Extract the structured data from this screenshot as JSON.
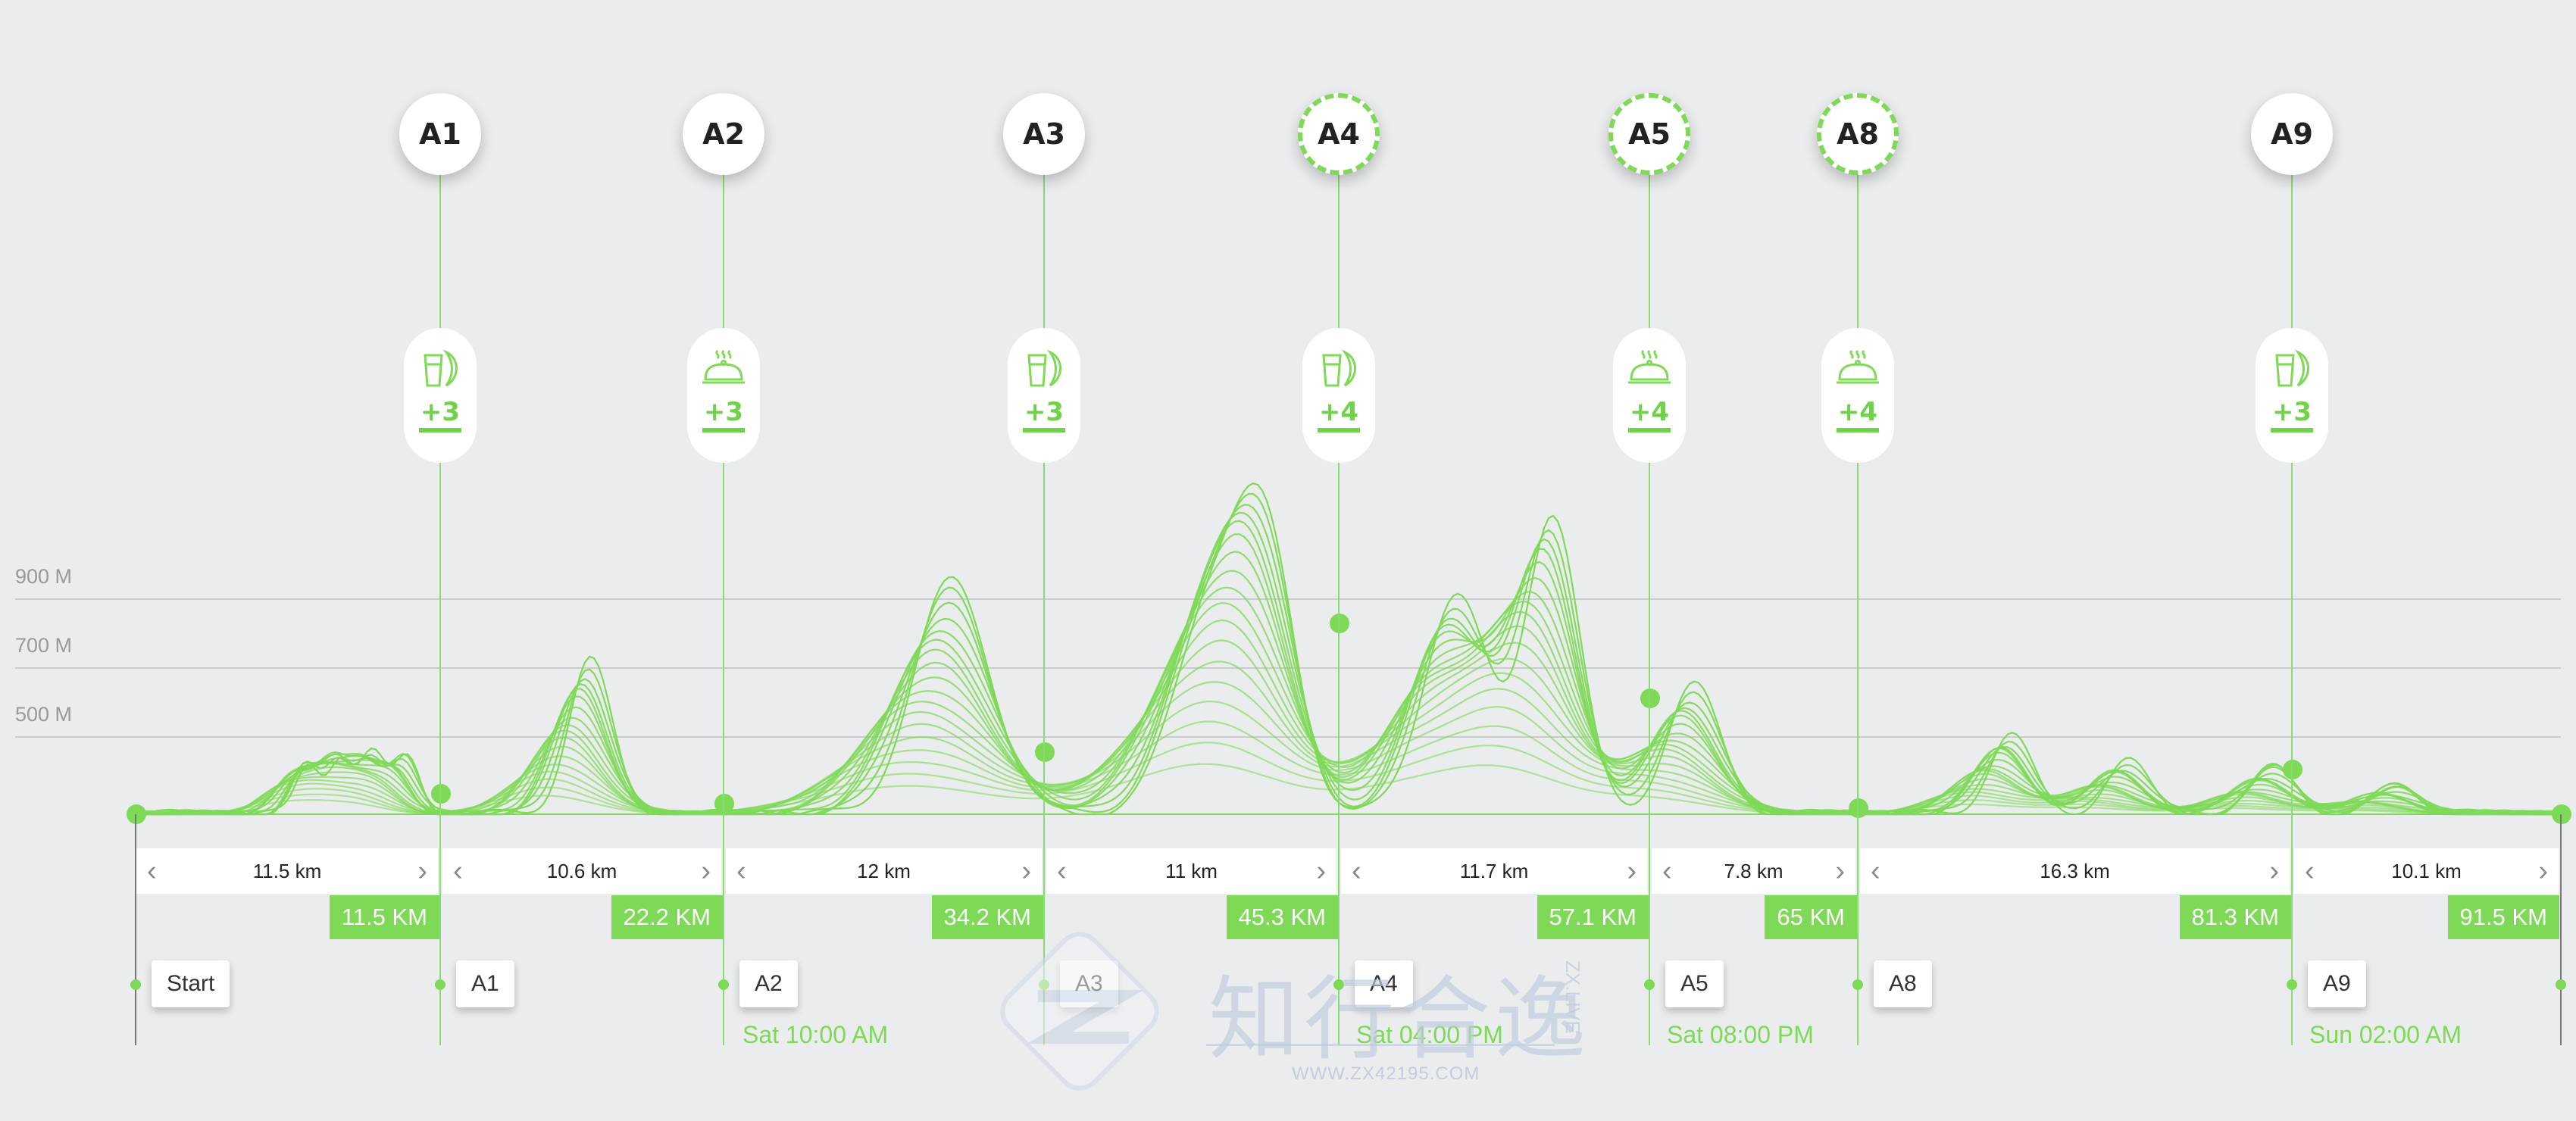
{
  "elevation_labels": [
    "900 M",
    "700 M",
    "500 M"
  ],
  "aid_stations": [
    {
      "label": "A1",
      "service": "drink-banana-icon",
      "count": "+3",
      "dashed": false
    },
    {
      "label": "A2",
      "service": "food-cloche-icon",
      "count": "+3",
      "dashed": false
    },
    {
      "label": "A3",
      "service": "drink-banana-icon",
      "count": "+3",
      "dashed": false
    },
    {
      "label": "A4",
      "service": "drink-banana-icon",
      "count": "+4",
      "dashed": true
    },
    {
      "label": "A5",
      "service": "food-cloche-icon",
      "count": "+4",
      "dashed": true
    },
    {
      "label": "A8",
      "service": "food-cloche-icon",
      "count": "+4",
      "dashed": true
    },
    {
      "label": "A9",
      "service": "drink-banana-icon",
      "count": "+3",
      "dashed": false
    }
  ],
  "segments": [
    {
      "distance": "11.5 km",
      "cumulative": "11.5 KM"
    },
    {
      "distance": "10.6 km",
      "cumulative": "22.2 KM"
    },
    {
      "distance": "12 km",
      "cumulative": "34.2 KM"
    },
    {
      "distance": "11 km",
      "cumulative": "45.3 KM"
    },
    {
      "distance": "11.7 km",
      "cumulative": "57.1 KM"
    },
    {
      "distance": "7.8 km",
      "cumulative": "65 KM"
    },
    {
      "distance": "16.3 km",
      "cumulative": "81.3 KM"
    },
    {
      "distance": "10.1 km",
      "cumulative": "91.5 KM"
    }
  ],
  "stops": [
    "Start",
    "A1",
    "A2",
    "A3",
    "A4",
    "A5",
    "A8",
    "A9"
  ],
  "times": [
    "Sat 10:00 AM",
    "Sat 04:00 PM",
    "Sat 08:00 PM",
    "Sun 02:00 AM"
  ],
  "watermark": {
    "chars": "知行合逸",
    "side": "ZX.LIVE",
    "url": "WWW.ZX42195.COM"
  },
  "colors": {
    "accent": "#7ed957",
    "background": "#ebecee",
    "gridline": "#c9cbcd"
  }
}
